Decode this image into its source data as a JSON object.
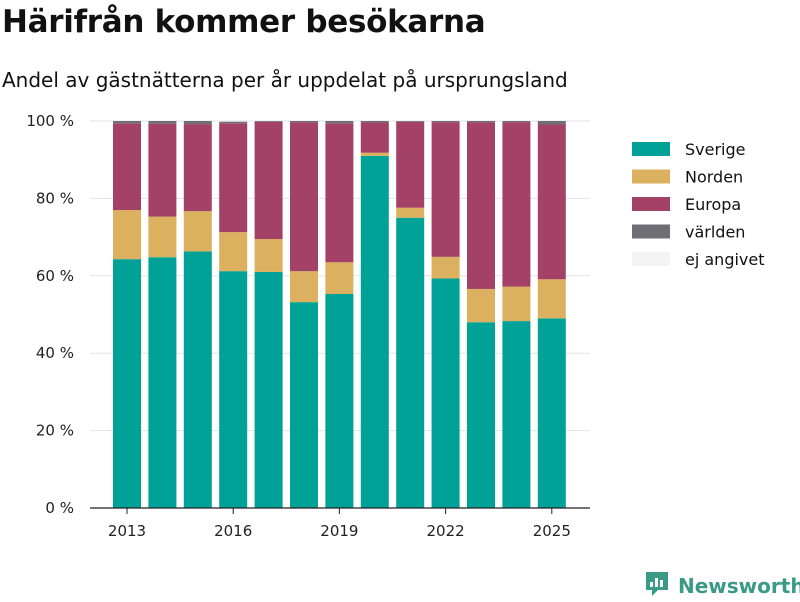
{
  "title": "Härifrån kommer besökarna",
  "subtitle": "Andel av gästnätterna per år uppdelat på ursprungsland",
  "brand": "Newsworthy",
  "colors": {
    "Sverige": "#00a197",
    "Norden": "#dbb05e",
    "Europa": "#a34166",
    "världen": "#6e6e74",
    "ej angivet": "#f3f3f3"
  },
  "chart_data": {
    "type": "bar",
    "stacked": true,
    "categories": [
      2013,
      2014,
      2015,
      2016,
      2017,
      2018,
      2019,
      2020,
      2021,
      2022,
      2023,
      2024,
      2025
    ],
    "series": [
      {
        "name": "Sverige",
        "values": [
          64.3,
          64.8,
          66.3,
          61.2,
          61.0,
          53.2,
          55.3,
          91.0,
          75.0,
          59.3,
          48.0,
          48.3,
          49.0
        ]
      },
      {
        "name": "Norden",
        "values": [
          12.7,
          10.5,
          10.4,
          10.1,
          8.5,
          8.0,
          8.2,
          0.8,
          2.6,
          5.6,
          8.6,
          8.9,
          10.1
        ]
      },
      {
        "name": "Europa",
        "values": [
          22.4,
          24.0,
          22.5,
          28.1,
          30.3,
          38.5,
          35.9,
          7.8,
          22.2,
          34.8,
          43.1,
          42.5,
          40.0
        ]
      },
      {
        "name": "världen",
        "values": [
          0.6,
          0.7,
          0.8,
          0.4,
          0.2,
          0.3,
          0.6,
          0.4,
          0.2,
          0.3,
          0.3,
          0.3,
          0.9
        ]
      },
      {
        "name": "ej angivet",
        "values": [
          0,
          0,
          0,
          0,
          0,
          0,
          0,
          0,
          0,
          0,
          0,
          0,
          0
        ]
      }
    ],
    "y_ticks": [
      "0 %",
      "20 %",
      "40 %",
      "60 %",
      "80 %",
      "100 %"
    ],
    "x_ticks": [
      "2013",
      "2016",
      "2019",
      "2022",
      "2025"
    ],
    "ylim": [
      0,
      100
    ],
    "grid": true,
    "legend_position": "right"
  }
}
